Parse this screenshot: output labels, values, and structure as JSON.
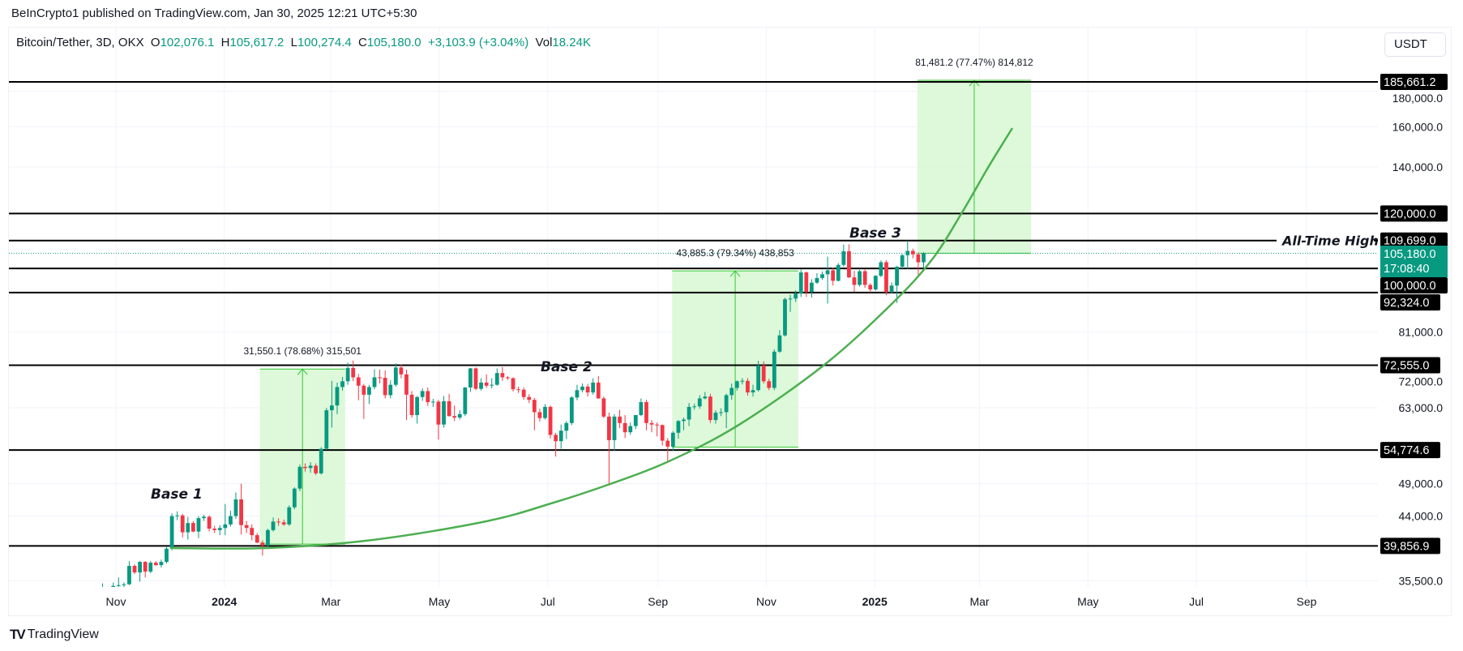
{
  "header": {
    "published": "BeInCrypto1 published on TradingView.com, Jan 30, 2025 12:21 UTC+5:30"
  },
  "legend": {
    "symbol": "Bitcoin/Tether, 3D, OKX",
    "o_label": "O",
    "o": "102,076.1",
    "h_label": "H",
    "h": "105,617.2",
    "l_label": "L",
    "l": "100,274.4",
    "c_label": "C",
    "c": "105,180.0",
    "change": "+3,103.9 (+3.04%)",
    "vol_label": "Vol",
    "vol": "18.24K"
  },
  "currency_button": "USDT",
  "footer": {
    "brand": "TradingView",
    "logo": "TV"
  },
  "colors": {
    "up": "#089981",
    "down": "#f23645",
    "measure_fill": "#d7f8d2",
    "measure_line": "#34c834",
    "curve": "#4caf50",
    "level": "#000000",
    "grid": "#f0f3fa"
  },
  "chart_data": {
    "type": "candlestick",
    "interval": "3D",
    "y_scale": "log",
    "ylim": [
      35500,
      185661.2
    ],
    "xlim": [
      "2023-10-18",
      "2025-10-10"
    ],
    "grid": true,
    "x_ticks": [
      {
        "date": "2023-11-01",
        "label": "Nov",
        "bold": false
      },
      {
        "date": "2024-01-01",
        "label": "2024",
        "bold": true
      },
      {
        "date": "2024-03-01",
        "label": "Mar",
        "bold": false
      },
      {
        "date": "2024-05-01",
        "label": "May",
        "bold": false
      },
      {
        "date": "2024-07-01",
        "label": "Jul",
        "bold": false
      },
      {
        "date": "2024-09-01",
        "label": "Sep",
        "bold": false
      },
      {
        "date": "2024-11-01",
        "label": "Nov",
        "bold": false
      },
      {
        "date": "2025-01-01",
        "label": "2025",
        "bold": true
      },
      {
        "date": "2025-03-01",
        "label": "Mar",
        "bold": false
      },
      {
        "date": "2025-05-01",
        "label": "May",
        "bold": false
      },
      {
        "date": "2025-07-01",
        "label": "Jul",
        "bold": false
      },
      {
        "date": "2025-09-01",
        "label": "Sep",
        "bold": false
      }
    ],
    "y_ticks": [
      {
        "value": 35500,
        "label": "35,500.0"
      },
      {
        "value": 44000,
        "label": "44,000.0"
      },
      {
        "value": 49000,
        "label": "49,000.0"
      },
      {
        "value": 63000,
        "label": "63,000.0"
      },
      {
        "value": 72000,
        "label": "72,000.0"
      },
      {
        "value": 81000,
        "label": "81,000.0"
      },
      {
        "value": 140000,
        "label": "140,000.0"
      },
      {
        "value": 160000,
        "label": "160,000.0"
      },
      {
        "value": 180000,
        "label": "180,000.0"
      }
    ],
    "levels": [
      {
        "value": 185661.2,
        "label": "185,661.2"
      },
      {
        "value": 120000,
        "label": "120,000.0"
      },
      {
        "value": 109699,
        "label": "109,699.0",
        "note": "All-Time High"
      },
      {
        "value": 100000,
        "label": "100,000.0"
      },
      {
        "value": 92324,
        "label": "92,324.0"
      },
      {
        "value": 72555,
        "label": "72,555.0"
      },
      {
        "value": 54774.6,
        "label": "54,774.6"
      },
      {
        "value": 39856.9,
        "label": "39,856.9"
      }
    ],
    "last_price": {
      "value": 105180,
      "label": "105,180.0",
      "countdown": "17:08:40"
    },
    "measurements": [
      {
        "from_date": "2024-01-21",
        "to_date": "2024-03-09",
        "from_price": 40099,
        "to_price": 71649.1,
        "label": "31,550.1 (78.68%) 315,501"
      },
      {
        "from_date": "2024-09-09",
        "to_date": "2024-11-19",
        "from_price": 55313,
        "to_price": 99198.3,
        "label": "43,885.3 (79.34%) 438,853"
      },
      {
        "from_date": "2025-01-25",
        "to_date": "2025-03-30",
        "from_price": 105180,
        "to_price": 186661.2,
        "label": "81,481.2 (77.47%) 814,812"
      }
    ],
    "annotations": [
      {
        "text": "Base 1"
      },
      {
        "text": "Base 2"
      },
      {
        "text": "Base 3"
      }
    ],
    "candles_format": [
      "date",
      "open",
      "high",
      "low",
      "close"
    ],
    "candles": [
      [
        "2023-10-20",
        29900,
        34700,
        29600,
        34100
      ],
      [
        "2023-10-23",
        34100,
        35200,
        33400,
        34500
      ],
      [
        "2023-10-26",
        34500,
        34800,
        33900,
        34600
      ],
      [
        "2023-10-29",
        34600,
        35300,
        34100,
        34900
      ],
      [
        "2023-11-01",
        34900,
        35900,
        34100,
        35000
      ],
      [
        "2023-11-04",
        35000,
        35300,
        34500,
        35100
      ],
      [
        "2023-11-07",
        35100,
        37900,
        35000,
        37300
      ],
      [
        "2023-11-10",
        37300,
        37500,
        36300,
        36500
      ],
      [
        "2023-11-13",
        36500,
        37900,
        35400,
        37800
      ],
      [
        "2023-11-16",
        37800,
        37900,
        35900,
        36600
      ],
      [
        "2023-11-19",
        36600,
        37900,
        36400,
        37700
      ],
      [
        "2023-11-22",
        37700,
        37900,
        37300,
        37400
      ],
      [
        "2023-11-25",
        37400,
        38100,
        37100,
        37800
      ],
      [
        "2023-11-28",
        37800,
        39800,
        37600,
        39500
      ],
      [
        "2023-12-01",
        39500,
        44400,
        39300,
        44000
      ],
      [
        "2023-12-04",
        44000,
        44700,
        43400,
        44100
      ],
      [
        "2023-12-07",
        44100,
        44300,
        41000,
        41700
      ],
      [
        "2023-12-10",
        41700,
        43900,
        40700,
        43000
      ],
      [
        "2023-12-13",
        43000,
        43300,
        41700,
        41800
      ],
      [
        "2023-12-16",
        41800,
        44000,
        40900,
        43700
      ],
      [
        "2023-12-19",
        43700,
        44200,
        43300,
        43900
      ],
      [
        "2023-12-22",
        43900,
        44100,
        41800,
        42200
      ],
      [
        "2023-12-25",
        42200,
        42600,
        41600,
        42000
      ],
      [
        "2023-12-28",
        42000,
        42700,
        41300,
        42300
      ],
      [
        "2023-12-31",
        42300,
        45800,
        41300,
        42800
      ],
      [
        "2024-01-03",
        42800,
        44800,
        42500,
        44000
      ],
      [
        "2024-01-06",
        44000,
        47600,
        43600,
        46500
      ],
      [
        "2024-01-09",
        46500,
        49000,
        41400,
        42700
      ],
      [
        "2024-01-12",
        42700,
        43300,
        41600,
        42300
      ],
      [
        "2024-01-15",
        42300,
        42800,
        40600,
        41300
      ],
      [
        "2024-01-18",
        41300,
        41600,
        40200,
        40300
      ],
      [
        "2024-01-21",
        40300,
        40600,
        38600,
        39900
      ],
      [
        "2024-01-24",
        39900,
        42200,
        39800,
        42000
      ],
      [
        "2024-01-27",
        42000,
        43800,
        41800,
        43200
      ],
      [
        "2024-01-30",
        43200,
        43700,
        42600,
        43100
      ],
      [
        "2024-02-02",
        43100,
        43500,
        42600,
        42800
      ],
      [
        "2024-02-05",
        42800,
        45600,
        42600,
        45300
      ],
      [
        "2024-02-08",
        45300,
        48400,
        45000,
        48200
      ],
      [
        "2024-02-11",
        48200,
        52200,
        47800,
        51800
      ],
      [
        "2024-02-14",
        51800,
        52400,
        51000,
        51600
      ],
      [
        "2024-02-17",
        51600,
        52600,
        50800,
        52000
      ],
      [
        "2024-02-20",
        52000,
        52400,
        50400,
        50700
      ],
      [
        "2024-02-23",
        50700,
        55300,
        50500,
        55000
      ],
      [
        "2024-02-26",
        55000,
        63000,
        54800,
        62500
      ],
      [
        "2024-02-29",
        62500,
        68900,
        59000,
        63500
      ],
      [
        "2024-03-03",
        63500,
        68500,
        61700,
        67500
      ],
      [
        "2024-03-06",
        67500,
        69800,
        66700,
        68800
      ],
      [
        "2024-03-09",
        68800,
        73200,
        68000,
        71900
      ],
      [
        "2024-03-12",
        71900,
        73700,
        68800,
        69700
      ],
      [
        "2024-03-15",
        69700,
        70500,
        64600,
        67800
      ],
      [
        "2024-03-18",
        67800,
        68200,
        60700,
        65800
      ],
      [
        "2024-03-21",
        65800,
        68000,
        63800,
        67500
      ],
      [
        "2024-03-24",
        67500,
        71600,
        67000,
        69700
      ],
      [
        "2024-03-27",
        69700,
        71500,
        68300,
        69600
      ],
      [
        "2024-03-30",
        69600,
        71300,
        65000,
        65700
      ],
      [
        "2024-04-02",
        65700,
        69000,
        65000,
        68000
      ],
      [
        "2024-04-05",
        68000,
        73000,
        67600,
        72000
      ],
      [
        "2024-04-08",
        72000,
        72700,
        69500,
        70400
      ],
      [
        "2024-04-11",
        70400,
        71500,
        60500,
        65800
      ],
      [
        "2024-04-14",
        65800,
        66600,
        61000,
        61500
      ],
      [
        "2024-04-17",
        61500,
        65500,
        59800,
        65300
      ],
      [
        "2024-04-20",
        65300,
        67200,
        64500,
        66600
      ],
      [
        "2024-04-23",
        66600,
        67400,
        63400,
        64200
      ],
      [
        "2024-04-26",
        64200,
        64900,
        63200,
        64300
      ],
      [
        "2024-04-29",
        64300,
        64700,
        56700,
        59600
      ],
      [
        "2024-05-02",
        59600,
        65500,
        59000,
        64400
      ],
      [
        "2024-05-05",
        64400,
        66000,
        61200,
        61300
      ],
      [
        "2024-05-08",
        61300,
        63500,
        60300,
        61000
      ],
      [
        "2024-05-11",
        61000,
        62500,
        60600,
        61700
      ],
      [
        "2024-05-14",
        61700,
        67500,
        61300,
        67400
      ],
      [
        "2024-05-17",
        67400,
        71900,
        66400,
        71800
      ],
      [
        "2024-05-20",
        71800,
        72000,
        66800,
        67100
      ],
      [
        "2024-05-23",
        67100,
        69500,
        66700,
        68500
      ],
      [
        "2024-05-26",
        68500,
        70400,
        67300,
        67800
      ],
      [
        "2024-05-29",
        67800,
        69500,
        67200,
        68000
      ],
      [
        "2024-06-01",
        68000,
        71800,
        67800,
        70700
      ],
      [
        "2024-06-04",
        70700,
        72100,
        68900,
        69700
      ],
      [
        "2024-06-07",
        69700,
        70000,
        69100,
        69500
      ],
      [
        "2024-06-10",
        69500,
        69700,
        66500,
        67000
      ],
      [
        "2024-06-13",
        67000,
        67600,
        66200,
        66900
      ],
      [
        "2024-06-16",
        66900,
        67400,
        64700,
        65300
      ],
      [
        "2024-06-19",
        65300,
        65900,
        64000,
        64700
      ],
      [
        "2024-06-22",
        64700,
        65100,
        58500,
        62100
      ],
      [
        "2024-06-25",
        62100,
        62800,
        60200,
        60900
      ],
      [
        "2024-06-28",
        60900,
        63800,
        60600,
        63200
      ],
      [
        "2024-07-01",
        63200,
        63500,
        56900,
        57600
      ],
      [
        "2024-07-04",
        57600,
        58000,
        53600,
        56400
      ],
      [
        "2024-07-07",
        56400,
        59600,
        55000,
        58400
      ],
      [
        "2024-07-10",
        58400,
        60300,
        56800,
        59900
      ],
      [
        "2024-07-13",
        59900,
        65500,
        59500,
        65200
      ],
      [
        "2024-07-16",
        65200,
        68000,
        64600,
        66800
      ],
      [
        "2024-07-19",
        66800,
        68300,
        66300,
        67600
      ],
      [
        "2024-07-22",
        67600,
        68200,
        65400,
        66300
      ],
      [
        "2024-07-25",
        66300,
        69500,
        65800,
        68500
      ],
      [
        "2024-07-28",
        68500,
        70000,
        64900,
        65000
      ],
      [
        "2024-07-31",
        65000,
        65400,
        60900,
        61200
      ],
      [
        "2024-08-03",
        61200,
        62000,
        49000,
        56600
      ],
      [
        "2024-08-06",
        56600,
        61700,
        54600,
        61200
      ],
      [
        "2024-08-09",
        61200,
        62600,
        58900,
        59900
      ],
      [
        "2024-08-12",
        59900,
        61500,
        57000,
        58100
      ],
      [
        "2024-08-15",
        58100,
        60000,
        57600,
        59300
      ],
      [
        "2024-08-18",
        59300,
        61500,
        58700,
        61500
      ],
      [
        "2024-08-21",
        61500,
        65000,
        61300,
        64200
      ],
      [
        "2024-08-24",
        64200,
        64700,
        58500,
        59900
      ],
      [
        "2024-08-27",
        59900,
        60500,
        58100,
        59600
      ],
      [
        "2024-08-30",
        59600,
        60000,
        57300,
        59500
      ],
      [
        "2024-09-02",
        59500,
        59600,
        55600,
        56500
      ],
      [
        "2024-09-05",
        56500,
        57000,
        52800,
        55400
      ],
      [
        "2024-09-08",
        55400,
        58300,
        54600,
        58000
      ],
      [
        "2024-09-11",
        58000,
        60500,
        56900,
        60300
      ],
      [
        "2024-09-14",
        60300,
        61000,
        58500,
        60600
      ],
      [
        "2024-09-17",
        60600,
        64000,
        59300,
        63200
      ],
      [
        "2024-09-20",
        63200,
        63900,
        62600,
        63300
      ],
      [
        "2024-09-23",
        63300,
        65700,
        62800,
        65000
      ],
      [
        "2024-09-26",
        65000,
        66400,
        64800,
        65400
      ],
      [
        "2024-09-29",
        65400,
        66000,
        59900,
        60500
      ],
      [
        "2024-10-02",
        60500,
        62500,
        59800,
        62000
      ],
      [
        "2024-10-05",
        62000,
        62900,
        61300,
        62100
      ],
      [
        "2024-10-08",
        62100,
        66000,
        58900,
        65700
      ],
      [
        "2024-10-11",
        65700,
        68300,
        64700,
        67300
      ],
      [
        "2024-10-14",
        67300,
        69000,
        66700,
        68800
      ],
      [
        "2024-10-17",
        68800,
        69500,
        68100,
        68900
      ],
      [
        "2024-10-20",
        68900,
        69500,
        65600,
        66300
      ],
      [
        "2024-10-23",
        66300,
        68000,
        65400,
        66800
      ],
      [
        "2024-10-26",
        66800,
        73600,
        66500,
        72500
      ],
      [
        "2024-10-29",
        72500,
        73500,
        68300,
        68800
      ],
      [
        "2024-11-01",
        68800,
        69400,
        66800,
        67300
      ],
      [
        "2024-11-04",
        67300,
        76500,
        66800,
        75900
      ],
      [
        "2024-11-07",
        75900,
        81500,
        75600,
        80100
      ],
      [
        "2024-11-10",
        80100,
        90800,
        79800,
        90300
      ],
      [
        "2024-11-13",
        90300,
        91700,
        86600,
        90500
      ],
      [
        "2024-11-16",
        90500,
        93000,
        89500,
        92000
      ],
      [
        "2024-11-19",
        92000,
        99600,
        91000,
        98700
      ],
      [
        "2024-11-22",
        98700,
        99000,
        91000,
        92500
      ],
      [
        "2024-11-25",
        92500,
        96500,
        90800,
        95400
      ],
      [
        "2024-11-28",
        95400,
        98500,
        95000,
        96900
      ],
      [
        "2024-12-01",
        96900,
        99000,
        96300,
        98100
      ],
      [
        "2024-12-04",
        98100,
        104000,
        89000,
        99400
      ],
      [
        "2024-12-07",
        99400,
        100300,
        94500,
        96000
      ],
      [
        "2024-12-10",
        96000,
        101800,
        95800,
        101200
      ],
      [
        "2024-12-13",
        101200,
        108300,
        100600,
        105900
      ],
      [
        "2024-12-16",
        105900,
        108300,
        96900,
        97100
      ],
      [
        "2024-12-19",
        97100,
        99200,
        92500,
        94700
      ],
      [
        "2024-12-22",
        94700,
        99600,
        94200,
        99100
      ],
      [
        "2024-12-25",
        99100,
        99900,
        93800,
        94700
      ],
      [
        "2024-12-28",
        94700,
        95200,
        92300,
        93300
      ],
      [
        "2024-12-31",
        93300,
        97800,
        92900,
        97600
      ],
      [
        "2025-01-03",
        97600,
        102700,
        97200,
        102100
      ],
      [
        "2025-01-06",
        102100,
        102800,
        91500,
        92400
      ],
      [
        "2025-01-09",
        92400,
        95500,
        92100,
        94500
      ],
      [
        "2025-01-12",
        94500,
        100800,
        89200,
        100600
      ],
      [
        "2025-01-15",
        100600,
        104900,
        99700,
        104500
      ],
      [
        "2025-01-18",
        104500,
        109600,
        99800,
        106000
      ],
      [
        "2025-01-21",
        106000,
        106800,
        103400,
        104800
      ],
      [
        "2025-01-24",
        104800,
        105400,
        97800,
        102076.1
      ],
      [
        "2025-01-27",
        102076.1,
        105617.2,
        100274.4,
        105180.0
      ]
    ]
  }
}
